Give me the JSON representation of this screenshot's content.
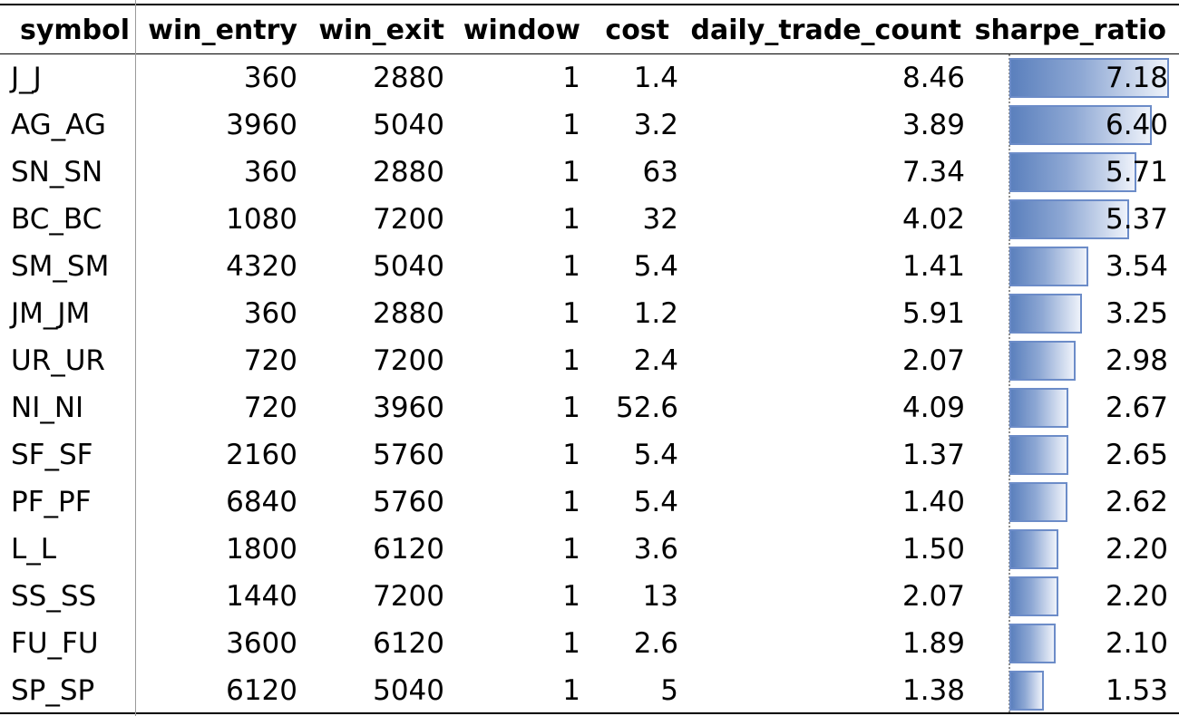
{
  "table": {
    "columns": [
      "symbol",
      "win_entry",
      "win_exit",
      "window",
      "cost",
      "daily_trade_count",
      "sharpe_ratio"
    ],
    "rows": [
      {
        "symbol": "J_J",
        "win_entry": "360",
        "win_exit": "2880",
        "window": "1",
        "cost": "1.4",
        "daily_trade_count": "8.46",
        "sharpe_ratio": "7.18",
        "sharpe_value": 7.18
      },
      {
        "symbol": "AG_AG",
        "win_entry": "3960",
        "win_exit": "5040",
        "window": "1",
        "cost": "3.2",
        "daily_trade_count": "3.89",
        "sharpe_ratio": "6.40",
        "sharpe_value": 6.4
      },
      {
        "symbol": "SN_SN",
        "win_entry": "360",
        "win_exit": "2880",
        "window": "1",
        "cost": "63",
        "daily_trade_count": "7.34",
        "sharpe_ratio": "5.71",
        "sharpe_value": 5.71
      },
      {
        "symbol": "BC_BC",
        "win_entry": "1080",
        "win_exit": "7200",
        "window": "1",
        "cost": "32",
        "daily_trade_count": "4.02",
        "sharpe_ratio": "5.37",
        "sharpe_value": 5.37
      },
      {
        "symbol": "SM_SM",
        "win_entry": "4320",
        "win_exit": "5040",
        "window": "1",
        "cost": "5.4",
        "daily_trade_count": "1.41",
        "sharpe_ratio": "3.54",
        "sharpe_value": 3.54
      },
      {
        "symbol": "JM_JM",
        "win_entry": "360",
        "win_exit": "2880",
        "window": "1",
        "cost": "1.2",
        "daily_trade_count": "5.91",
        "sharpe_ratio": "3.25",
        "sharpe_value": 3.25
      },
      {
        "symbol": "UR_UR",
        "win_entry": "720",
        "win_exit": "7200",
        "window": "1",
        "cost": "2.4",
        "daily_trade_count": "2.07",
        "sharpe_ratio": "2.98",
        "sharpe_value": 2.98
      },
      {
        "symbol": "NI_NI",
        "win_entry": "720",
        "win_exit": "3960",
        "window": "1",
        "cost": "52.6",
        "daily_trade_count": "4.09",
        "sharpe_ratio": "2.67",
        "sharpe_value": 2.67
      },
      {
        "symbol": "SF_SF",
        "win_entry": "2160",
        "win_exit": "5760",
        "window": "1",
        "cost": "5.4",
        "daily_trade_count": "1.37",
        "sharpe_ratio": "2.65",
        "sharpe_value": 2.65
      },
      {
        "symbol": "PF_PF",
        "win_entry": "6840",
        "win_exit": "5760",
        "window": "1",
        "cost": "5.4",
        "daily_trade_count": "1.40",
        "sharpe_ratio": "2.62",
        "sharpe_value": 2.62
      },
      {
        "symbol": "L_L",
        "win_entry": "1800",
        "win_exit": "6120",
        "window": "1",
        "cost": "3.6",
        "daily_trade_count": "1.50",
        "sharpe_ratio": "2.20",
        "sharpe_value": 2.2
      },
      {
        "symbol": "SS_SS",
        "win_entry": "1440",
        "win_exit": "7200",
        "window": "1",
        "cost": "13",
        "daily_trade_count": "2.07",
        "sharpe_ratio": "2.20",
        "sharpe_value": 2.2
      },
      {
        "symbol": "FU_FU",
        "win_entry": "3600",
        "win_exit": "6120",
        "window": "1",
        "cost": "2.6",
        "daily_trade_count": "1.89",
        "sharpe_ratio": "2.10",
        "sharpe_value": 2.1
      },
      {
        "symbol": "SP_SP",
        "win_entry": "6120",
        "win_exit": "5040",
        "window": "1",
        "cost": "5",
        "daily_trade_count": "1.38",
        "sharpe_ratio": "1.53",
        "sharpe_value": 1.53
      }
    ],
    "sharpe_bar_max": 7.18,
    "colors": {
      "bar_start": "#5b80bd",
      "bar_end": "#eef2fa",
      "bar_border": "#6c8cc8"
    }
  }
}
